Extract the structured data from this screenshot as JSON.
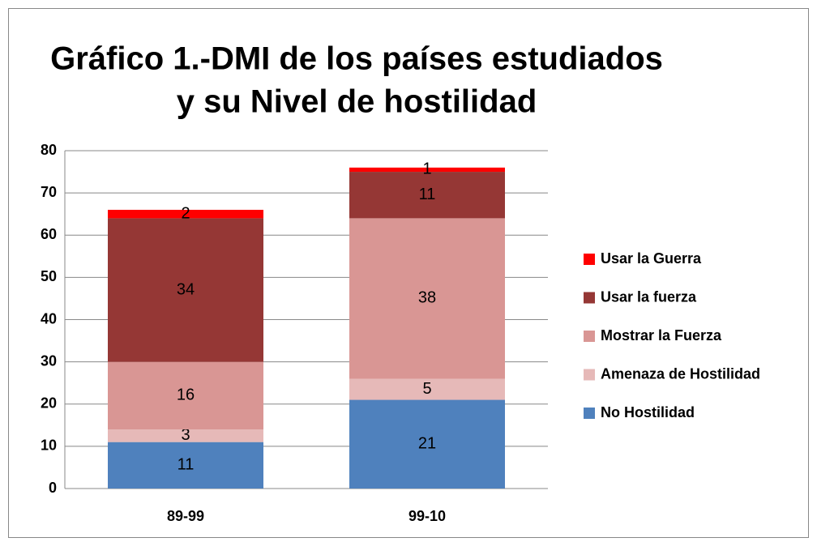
{
  "chart_data": {
    "type": "stacked_bar",
    "title": [
      "Gráfico 1.-DMI de los países estudiados",
      "y su Nivel de hostilidad"
    ],
    "categories": [
      "89-99",
      "99-10"
    ],
    "series": [
      {
        "name": "No Hostilidad",
        "color": "#4f81bd",
        "values": [
          11,
          21
        ]
      },
      {
        "name": "Amenaza de Hostilidad",
        "color": "#e6b9b8",
        "values": [
          3,
          5
        ]
      },
      {
        "name": "Mostrar la Fuerza",
        "color": "#d99694",
        "values": [
          16,
          38
        ]
      },
      {
        "name": "Usar la fuerza",
        "color": "#953735",
        "values": [
          34,
          11
        ]
      },
      {
        "name": "Usar la Guerra",
        "color": "#ff0000",
        "values": [
          2,
          1
        ]
      }
    ],
    "ylim": [
      0,
      80
    ],
    "yticks": [
      0,
      10,
      20,
      30,
      40,
      50,
      60,
      70,
      80
    ],
    "grid": true,
    "legend": "right"
  }
}
